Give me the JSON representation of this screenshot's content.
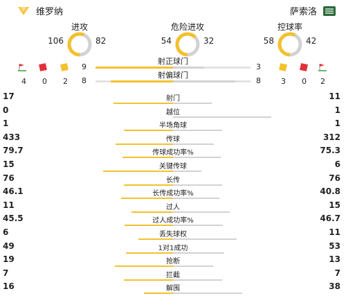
{
  "home_team": {
    "name": "维罗纳",
    "logo_icon": "verona-logo-icon",
    "color": "#f6c344"
  },
  "away_team": {
    "name": "萨索洛",
    "logo_icon": "sassuolo-logo-icon",
    "color": "#2b6a3a"
  },
  "colors": {
    "accent": "#f2c12e",
    "neutral": "#d2d2d2",
    "red_card": "#e0303a",
    "yellow_card": "#f2c12e"
  },
  "donuts": [
    {
      "title": "进攻",
      "home": 106,
      "away": 82
    },
    {
      "title": "危险进攻",
      "home": 54,
      "away": 32
    },
    {
      "title": "控球率",
      "home": 58,
      "away": 42
    }
  ],
  "shots_on": {
    "label": "射正球门",
    "home": 9,
    "away": 3
  },
  "shots_off": {
    "label": "射偏球门",
    "home": 8,
    "away": 8
  },
  "home_events": {
    "corners": 4,
    "red_cards": 0,
    "yellow_cards": 2
  },
  "away_events": {
    "yellow_cards": 3,
    "red_cards": 0,
    "corners": 2
  },
  "stats": [
    {
      "label": "射门",
      "home": "17",
      "away": "11"
    },
    {
      "label": "越位",
      "home": "0",
      "away": "1"
    },
    {
      "label": "半场角球",
      "home": "1",
      "away": "1"
    },
    {
      "label": "传球",
      "home": "433",
      "away": "312"
    },
    {
      "label": "传球成功率%",
      "home": "79.7",
      "away": "75.3"
    },
    {
      "label": "关键传球",
      "home": "15",
      "away": "6"
    },
    {
      "label": "长传",
      "home": "76",
      "away": "76"
    },
    {
      "label": "长传成功率%",
      "home": "46.1",
      "away": "40.8"
    },
    {
      "label": "过人",
      "home": "11",
      "away": "15"
    },
    {
      "label": "过人成功率%",
      "home": "45.5",
      "away": "46.7"
    },
    {
      "label": "丢失球权",
      "home": "6",
      "away": "11"
    },
    {
      "label": "1对1成功",
      "home": "49",
      "away": "53"
    },
    {
      "label": "抢断",
      "home": "19",
      "away": "13"
    },
    {
      "label": "拦截",
      "home": "7",
      "away": "7"
    },
    {
      "label": "解围",
      "home": "16",
      "away": "38"
    }
  ]
}
